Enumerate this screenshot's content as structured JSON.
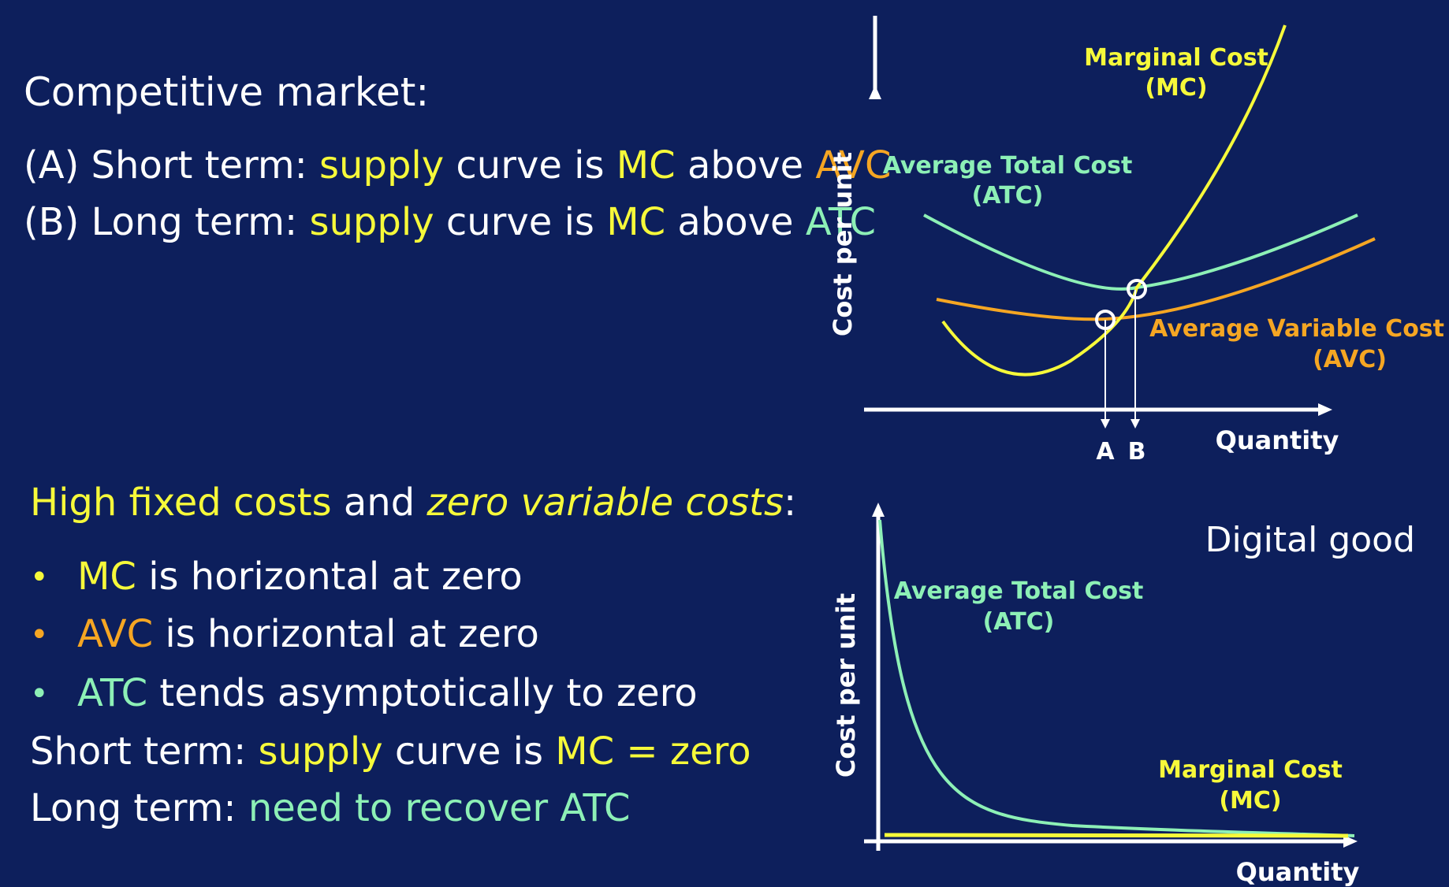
{
  "colors": {
    "background": "#0d1f5c",
    "mc_yellow": "#f6f93a",
    "avc_orange": "#f5a623",
    "atc_green": "#8df0b6",
    "text_white": "#ffffff"
  },
  "left": {
    "section1": {
      "heading": "Competitive market:",
      "lineA": {
        "prefix": "(A) Short term: ",
        "supply": "supply",
        "curve_is": " curve is ",
        "mc": "MC",
        "above": " above ",
        "avc": "AVC"
      },
      "lineB": {
        "prefix": "(B) Long term: ",
        "supply": "supply",
        "curve_is": " curve is ",
        "mc": "MC",
        "above": " above ",
        "atc": "ATC"
      }
    },
    "section2": {
      "heading_p1": "High fixed costs",
      "heading_and": " and ",
      "heading_p2": "zero variable costs",
      "heading_colon": ":",
      "bullet_char": "•",
      "bullets": [
        {
          "key": "MC",
          "rest": " is horizontal at zero"
        },
        {
          "key": "AVC",
          "rest": " is horizontal at zero"
        },
        {
          "key": "ATC",
          "rest": " tends asymptotically to zero"
        }
      ],
      "short_term": {
        "prefix": "Short term: ",
        "supply": "supply",
        "curve_is": " curve is ",
        "mc_zero": "MC = zero"
      },
      "long_term": {
        "prefix": "Long term: ",
        "need": "need to recover ATC"
      }
    }
  },
  "chart1": {
    "ylabel": "Cost per unit",
    "xlabel": "Quantity",
    "mc_label": [
      "Marginal Cost",
      "(MC)"
    ],
    "atc_label": [
      "Average Total Cost",
      "(ATC)"
    ],
    "avc_label": [
      "Average Variable Cost",
      "(AVC)"
    ],
    "marker_a": "A",
    "marker_b": "B"
  },
  "chart2": {
    "title": "Digital good",
    "ylabel": "Cost per unit",
    "xlabel": "Quantity",
    "atc_label": [
      "Average Total Cost",
      "(ATC)"
    ],
    "mc_label": [
      "Marginal Cost",
      "(MC)"
    ]
  }
}
